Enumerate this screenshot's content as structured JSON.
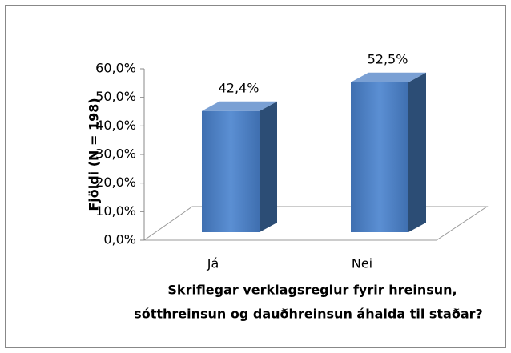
{
  "chart_data": {
    "type": "bar3d",
    "ylabel": "Fjöldi (N = 198)",
    "xlabel": [
      "Skriflegar verklagsreglur fyrir hreinsun,",
      "sótthreinsun og dauðhreinsun áhalda til staðar?"
    ],
    "categories": [
      "Já",
      "Nei"
    ],
    "values": [
      42.4,
      52.5
    ],
    "value_labels": [
      "42,4%",
      "52,5%"
    ],
    "color": "#4f81bd",
    "ylim": [
      0,
      60
    ],
    "yticks": [
      {
        "value": 0,
        "label": "0,0%"
      },
      {
        "value": 10,
        "label": "10,0%"
      },
      {
        "value": 20,
        "label": "20,0%"
      },
      {
        "value": 30,
        "label": "30,0%"
      },
      {
        "value": 40,
        "label": "40,0%"
      },
      {
        "value": 50,
        "label": "50,0%"
      },
      {
        "value": 60,
        "label": "60,0%"
      }
    ]
  }
}
